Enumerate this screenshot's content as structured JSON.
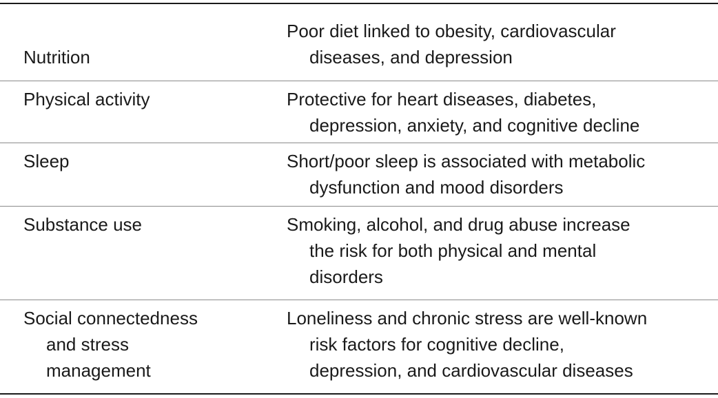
{
  "table": {
    "rows": [
      {
        "factor": [
          "Nutrition"
        ],
        "description": [
          "Poor diet linked to obesity, cardiovascular",
          "diseases, and depression"
        ]
      },
      {
        "factor": [
          "Physical activity"
        ],
        "description": [
          "Protective for heart diseases, diabetes,",
          "depression, anxiety, and cognitive decline"
        ]
      },
      {
        "factor": [
          "Sleep"
        ],
        "description": [
          "Short/poor sleep is associated with metabolic",
          "dysfunction and mood disorders"
        ]
      },
      {
        "factor": [
          "Substance use"
        ],
        "description": [
          "Smoking, alcohol, and drug abuse increase",
          "the risk for both physical and mental",
          "disorders"
        ]
      },
      {
        "factor": [
          "Social connectedness",
          "and stress",
          "management"
        ],
        "description": [
          "Loneliness and chronic stress are well-known",
          "risk factors for cognitive decline,",
          "depression, and cardiovascular diseases"
        ]
      }
    ]
  }
}
